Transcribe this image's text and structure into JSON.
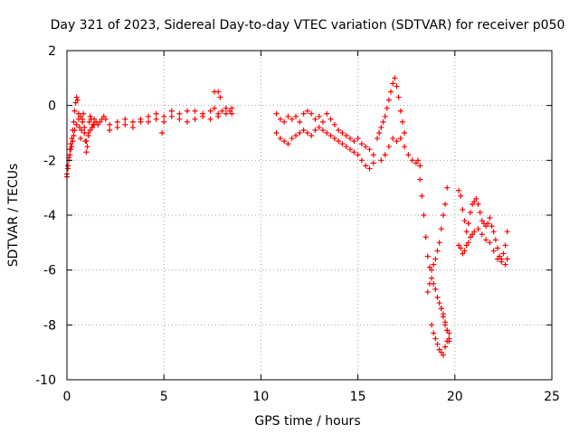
{
  "chart_data": {
    "type": "scatter",
    "title": "Day 321 of 2023, Sidereal Day-to-day VTEC variation (SDTVAR) for receiver p050",
    "xlabel": "GPS time / hours",
    "ylabel": "SDTVAR / TECUs",
    "xlim": [
      0,
      25
    ],
    "ylim": [
      -10,
      2
    ],
    "xticks": [
      0,
      5,
      10,
      15,
      20,
      25
    ],
    "yticks": [
      -10,
      -8,
      -6,
      -4,
      -2,
      0,
      2
    ],
    "grid": true,
    "marker": "+",
    "color": "#ff0000",
    "series": [
      {
        "name": "SDTVAR p050",
        "x": [
          0.0,
          0.05,
          0.1,
          0.15,
          0.2,
          0.25,
          0.3,
          0.35,
          0.4,
          0.45,
          0.5,
          0.55,
          0.6,
          0.65,
          0.7,
          0.75,
          0.8,
          0.85,
          0.9,
          0.95,
          1.0,
          1.05,
          1.1,
          1.15,
          1.2,
          1.25,
          1.3,
          1.35,
          1.4,
          1.5,
          1.6,
          1.7,
          1.8,
          1.9,
          2.0,
          0.0,
          0.05,
          0.1,
          0.15,
          0.2,
          0.25,
          0.3,
          0.35,
          0.4,
          0.5,
          0.6,
          0.7,
          0.8,
          0.9,
          1.0,
          1.1,
          1.2,
          1.3,
          1.4,
          2.2,
          2.6,
          3.0,
          3.4,
          3.8,
          4.2,
          4.6,
          5.0,
          5.4,
          5.8,
          6.2,
          6.6,
          7.0,
          7.4,
          7.6,
          7.8,
          8.0,
          8.2,
          8.4,
          8.5,
          2.2,
          2.6,
          3.0,
          3.4,
          3.8,
          4.2,
          4.6,
          5.0,
          5.4,
          5.8,
          6.2,
          6.6,
          7.0,
          7.4,
          7.8,
          8.2,
          8.5,
          7.6,
          7.8,
          7.9,
          4.9,
          10.8,
          11.0,
          11.2,
          11.4,
          11.6,
          11.8,
          12.0,
          12.2,
          12.4,
          12.6,
          12.8,
          13.0,
          13.2,
          13.4,
          13.6,
          13.8,
          14.0,
          14.2,
          14.4,
          14.6,
          14.8,
          15.0,
          15.2,
          15.4,
          15.6,
          15.8,
          10.8,
          11.0,
          11.2,
          11.4,
          11.6,
          11.8,
          12.0,
          12.2,
          12.4,
          12.6,
          12.8,
          13.0,
          13.2,
          13.4,
          13.6,
          13.8,
          14.0,
          14.2,
          14.4,
          14.6,
          14.8,
          15.0,
          15.2,
          15.4,
          15.6,
          15.8,
          16.0,
          16.1,
          16.2,
          16.3,
          16.4,
          16.5,
          16.6,
          16.7,
          16.8,
          16.9,
          17.0,
          17.1,
          17.2,
          17.3,
          17.4,
          16.2,
          16.4,
          16.6,
          16.8,
          17.0,
          17.2,
          17.4,
          17.6,
          17.8,
          18.0,
          18.1,
          18.2,
          18.2,
          18.3,
          18.4,
          18.5,
          18.6,
          18.7,
          18.8,
          18.9,
          19.0,
          19.1,
          19.2,
          19.3,
          19.4,
          19.5,
          19.6,
          18.6,
          18.7,
          18.8,
          18.9,
          19.0,
          19.1,
          19.2,
          19.3,
          19.4,
          19.5,
          19.6,
          19.7,
          18.8,
          18.9,
          19.0,
          19.1,
          19.2,
          19.3,
          19.4,
          19.5,
          19.6,
          19.7,
          19.3,
          19.4,
          19.5,
          19.6,
          19.7,
          20.2,
          20.3,
          20.4,
          20.5,
          20.6,
          20.7,
          20.8,
          20.9,
          21.0,
          21.1,
          21.2,
          21.3,
          21.4,
          21.5,
          21.6,
          21.7,
          21.8,
          21.9,
          22.0,
          22.1,
          22.2,
          22.3,
          22.4,
          22.5,
          22.6,
          22.7,
          20.2,
          20.3,
          20.4,
          20.5,
          20.6,
          20.7,
          20.8,
          20.9,
          21.0,
          21.2,
          21.4,
          21.6,
          21.8,
          22.0,
          22.2,
          22.4,
          22.6,
          22.7
        ],
        "y": [
          -2.6,
          -2.3,
          -1.9,
          -1.6,
          -1.4,
          -1.2,
          -0.9,
          -0.6,
          -0.2,
          0.1,
          0.3,
          0.2,
          -0.3,
          -0.8,
          -1.2,
          -0.9,
          -0.5,
          -0.3,
          -0.8,
          -1.3,
          -1.7,
          -1.5,
          -1.0,
          -0.6,
          -0.4,
          -0.5,
          -0.8,
          -0.7,
          -0.5,
          -0.6,
          -0.7,
          -0.6,
          -0.5,
          -0.4,
          -0.5,
          -2.5,
          -2.2,
          -2.0,
          -1.8,
          -1.6,
          -1.5,
          -1.3,
          -1.1,
          -0.9,
          -0.7,
          -0.5,
          -0.4,
          -0.6,
          -1.0,
          -1.3,
          -1.1,
          -0.9,
          -0.8,
          -0.7,
          -0.7,
          -0.6,
          -0.5,
          -0.6,
          -0.5,
          -0.4,
          -0.3,
          -0.4,
          -0.2,
          -0.3,
          -0.2,
          -0.2,
          -0.3,
          -0.2,
          -0.1,
          -0.3,
          -0.2,
          -0.1,
          -0.2,
          -0.1,
          -0.9,
          -0.8,
          -0.7,
          -0.8,
          -0.6,
          -0.6,
          -0.5,
          -0.6,
          -0.4,
          -0.5,
          -0.6,
          -0.5,
          -0.4,
          -0.5,
          -0.4,
          -0.3,
          -0.3,
          0.5,
          0.5,
          0.3,
          -1.0,
          -0.3,
          -0.5,
          -0.6,
          -0.4,
          -0.5,
          -0.4,
          -0.6,
          -0.3,
          -0.2,
          -0.3,
          -0.5,
          -0.4,
          -0.6,
          -0.3,
          -0.5,
          -0.7,
          -0.9,
          -1.0,
          -1.1,
          -1.2,
          -1.3,
          -1.2,
          -1.4,
          -1.5,
          -1.6,
          -1.8,
          -1.0,
          -1.2,
          -1.3,
          -1.4,
          -1.2,
          -1.1,
          -1.0,
          -0.9,
          -1.0,
          -1.1,
          -0.9,
          -0.8,
          -0.9,
          -1.0,
          -1.1,
          -1.2,
          -1.3,
          -1.4,
          -1.5,
          -1.6,
          -1.7,
          -1.8,
          -2.0,
          -2.2,
          -2.3,
          -2.1,
          -1.2,
          -1.0,
          -0.8,
          -0.6,
          -0.4,
          -0.1,
          0.2,
          0.5,
          0.8,
          1.0,
          0.7,
          0.3,
          -0.2,
          -0.6,
          -1.0,
          -2.0,
          -1.8,
          -1.5,
          -1.2,
          -1.3,
          -1.2,
          -1.5,
          -1.8,
          -2.0,
          -2.1,
          -2.0,
          -2.2,
          -2.7,
          -3.3,
          -4.0,
          -4.8,
          -5.5,
          -5.9,
          -6.0,
          -5.8,
          -5.6,
          -5.3,
          -5.0,
          -4.5,
          -4.0,
          -3.6,
          -3.0,
          -6.8,
          -6.5,
          -6.3,
          -6.5,
          -6.7,
          -7.0,
          -7.2,
          -7.4,
          -7.6,
          -7.9,
          -8.2,
          -8.6,
          -8.0,
          -8.3,
          -8.5,
          -8.7,
          -8.9,
          -9.0,
          -9.1,
          -8.8,
          -8.6,
          -8.3,
          -7.4,
          -7.7,
          -8.0,
          -8.2,
          -8.5,
          -3.1,
          -3.3,
          -3.8,
          -4.2,
          -4.6,
          -4.3,
          -3.9,
          -3.6,
          -3.5,
          -3.4,
          -3.6,
          -3.9,
          -4.2,
          -4.3,
          -4.4,
          -4.3,
          -4.1,
          -4.4,
          -4.6,
          -4.9,
          -5.2,
          -5.5,
          -5.6,
          -5.4,
          -5.1,
          -4.6,
          -5.1,
          -5.2,
          -5.4,
          -5.3,
          -5.1,
          -5.0,
          -4.8,
          -4.7,
          -4.6,
          -4.5,
          -4.7,
          -4.9,
          -5.0,
          -5.3,
          -5.6,
          -5.7,
          -5.8,
          -5.6
        ]
      }
    ]
  }
}
